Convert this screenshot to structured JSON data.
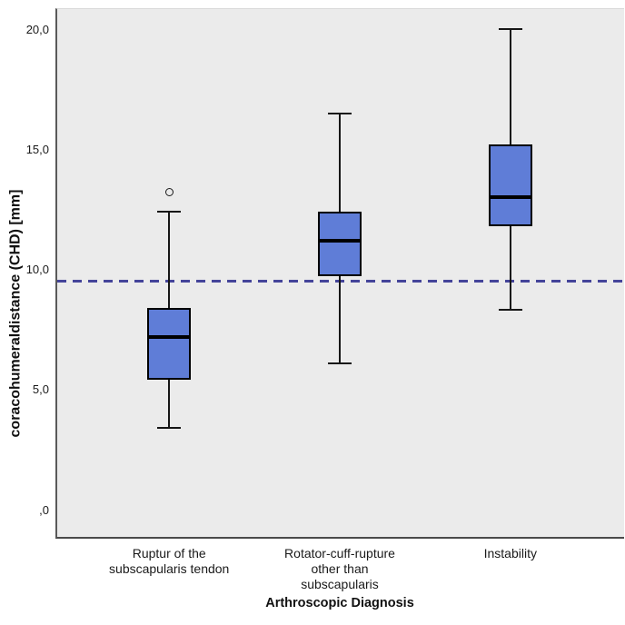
{
  "chart_data": {
    "type": "boxplot",
    "title": "",
    "xlabel": "Arthroscopic Diagnosis",
    "ylabel": "coracohumeraldistance (CHD) [mm]",
    "ylim": [
      0,
      20
    ],
    "yticks": [
      0,
      5,
      10,
      15,
      20
    ],
    "ytick_labels": [
      ",0",
      "5,0",
      "10,0",
      "15,0",
      "20,0"
    ],
    "grid": false,
    "legend": "none",
    "plot_background": "#EBEBEB",
    "reference_line": {
      "value": 9.5,
      "style": "dashed",
      "color": "#44449A"
    },
    "categories": [
      "Ruptur of the\nsubscapularis tendon",
      "Rotator-cuff-rupture\nother than\nsubscapularis",
      "Instability"
    ],
    "series": [
      {
        "category": "Ruptur of the subscapularis tendon",
        "whisker_low": 3.4,
        "q1": 5.4,
        "median": 7.2,
        "q3": 8.4,
        "whisker_high": 12.4,
        "outliers": [
          13.2
        ]
      },
      {
        "category": "Rotator-cuff-rupture other than subscapularis",
        "whisker_low": 6.1,
        "q1": 9.7,
        "median": 11.2,
        "q3": 12.4,
        "whisker_high": 16.5,
        "outliers": []
      },
      {
        "category": "Instability",
        "whisker_low": 8.3,
        "q1": 11.8,
        "median": 13.0,
        "q3": 15.2,
        "whisker_high": 20.0,
        "outliers": []
      }
    ],
    "colors": {
      "box_fill": "#5F7DD7",
      "box_border": "#000000",
      "median": "#000000",
      "whisker": "#161616",
      "axis": "#5a5a5a",
      "ref_line": "#44449A",
      "plot_bg": "#EBEBEB"
    }
  }
}
